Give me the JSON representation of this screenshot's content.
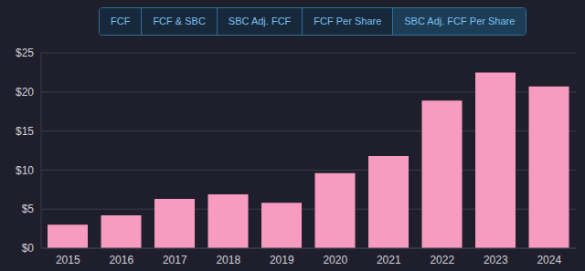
{
  "chart_data": {
    "type": "bar",
    "tabs": [
      "FCF",
      "FCF & SBC",
      "SBC Adj. FCF",
      "FCF Per Share",
      "SBC Adj. FCF Per Share"
    ],
    "selected_tab": "SBC Adj. FCF Per Share",
    "categories": [
      "2015",
      "2016",
      "2017",
      "2018",
      "2019",
      "2020",
      "2021",
      "2022",
      "2023",
      "2024"
    ],
    "values": [
      3.0,
      4.2,
      6.3,
      6.9,
      5.8,
      9.6,
      11.8,
      18.9,
      22.5,
      20.7
    ],
    "color": "#f79bc0",
    "ylim": [
      0,
      25
    ],
    "yticks": [
      {
        "value": 0,
        "label": "$0"
      },
      {
        "value": 5,
        "label": "$5"
      },
      {
        "value": 10,
        "label": "$10"
      },
      {
        "value": 15,
        "label": "$15"
      },
      {
        "value": 20,
        "label": "$20"
      },
      {
        "value": 25,
        "label": "$25"
      }
    ],
    "grid": true
  }
}
